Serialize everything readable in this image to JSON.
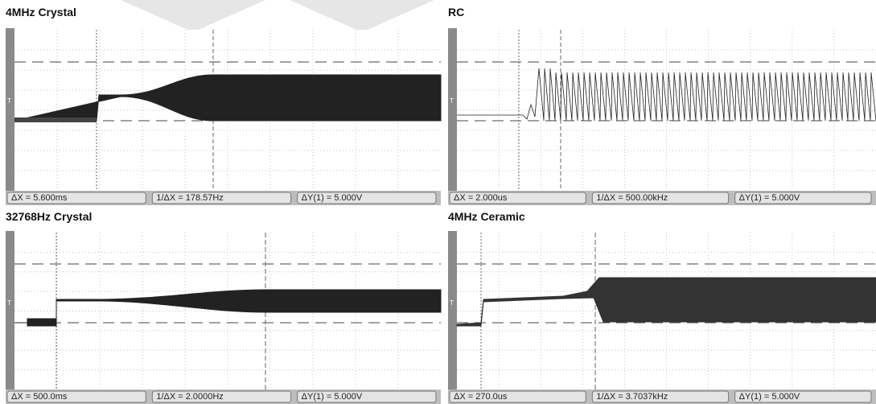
{
  "panels": [
    {
      "title": "4MHz Crystal",
      "readouts": [
        "ΔX = 5.600ms",
        "1/ΔX = 178.57Hz",
        "ΔY(1) = 5.000V"
      ]
    },
    {
      "title": "RC",
      "readouts": [
        "ΔX = 2.000us",
        "1/ΔX = 500.00kHz",
        "ΔY(1) = 5.000V"
      ]
    },
    {
      "title": "32768Hz Crystal",
      "readouts": [
        "ΔX = 500.0ms",
        "1/ΔX = 2.0000Hz",
        "ΔY(1) = 5.000V"
      ]
    },
    {
      "title": "4MHz Ceramic",
      "readouts": [
        "ΔX = 270.0us",
        "1/ΔX = 3.7037kHz",
        "ΔY(1) = 5.000V"
      ]
    }
  ]
}
